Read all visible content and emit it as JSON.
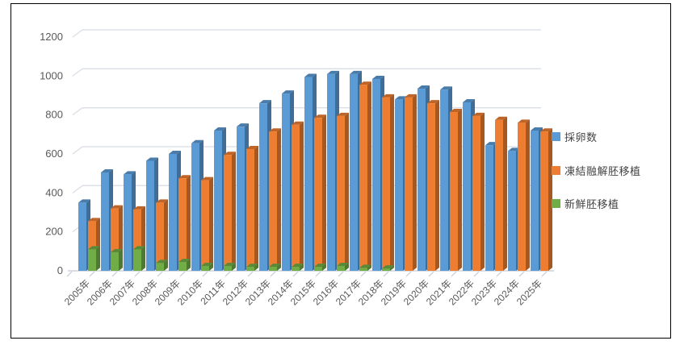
{
  "window": {
    "background_color": "#ffffff",
    "frame_border_color": "#000000"
  },
  "chart_data": {
    "type": "bar",
    "subtype": "3d-clustered-column",
    "title": "",
    "categories": [
      "2005年",
      "2006年",
      "2007年",
      "2008年",
      "2009年",
      "2010年",
      "2011年",
      "2012年",
      "2013年",
      "2014年",
      "2015年",
      "2016年",
      "2017年",
      "2018年",
      "2019年",
      "2020年",
      "2021年",
      "2022年",
      "2023年",
      "2024年",
      "2025年"
    ],
    "series": [
      {
        "name": "採卵数",
        "color": "#5B9BD5",
        "values": [
          350,
          505,
          495,
          565,
          600,
          655,
          720,
          740,
          860,
          910,
          995,
          1010,
          1010,
          985,
          880,
          935,
          930,
          865,
          645,
          615,
          720
        ]
      },
      {
        "name": "凍結融解胚移植",
        "color": "#ED7D31",
        "values": [
          255,
          320,
          315,
          350,
          475,
          465,
          595,
          625,
          715,
          750,
          785,
          795,
          955,
          890,
          890,
          860,
          815,
          795,
          775,
          760,
          715
        ]
      },
      {
        "name": "新鮮胚移植",
        "color": "#70AD47",
        "values": [
          110,
          95,
          110,
          40,
          45,
          25,
          25,
          20,
          20,
          20,
          20,
          25,
          15,
          12,
          0,
          0,
          0,
          0,
          0,
          0,
          0
        ]
      }
    ],
    "ylim": [
      0,
      1200
    ],
    "ytick_step": 200,
    "yticks": [
      "0",
      "200",
      "400",
      "600",
      "800",
      "1000",
      "1200"
    ],
    "grid": true,
    "legend_position": "right",
    "axis_text_color": "#595959",
    "gridline_color": "#D8DDE6"
  }
}
